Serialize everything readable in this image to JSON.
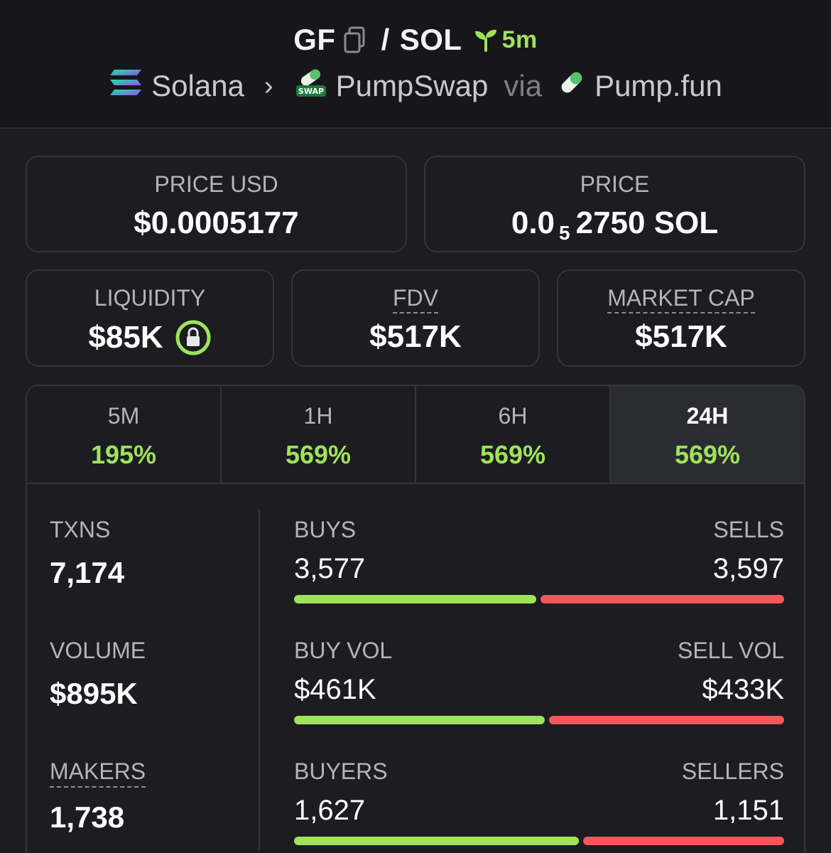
{
  "header": {
    "symbol": "GF",
    "slash": "/",
    "quote": "SOL",
    "age": "5m",
    "chain": "Solana",
    "dex": "PumpSwap",
    "via": "via",
    "launchpad": "Pump.fun"
  },
  "prices": {
    "price_usd_label": "PRICE USD",
    "price_usd": "$0.0005177",
    "price_label": "PRICE",
    "price_prefix": "0.0",
    "price_subscript": "5",
    "price_suffix": "2750 SOL"
  },
  "metrics": {
    "liquidity_label": "LIQUIDITY",
    "liquidity": "$85K",
    "fdv_label": "FDV",
    "fdv": "$517K",
    "mcap_label": "MARKET CAP",
    "mcap": "$517K"
  },
  "tabs": [
    {
      "label": "5M",
      "value": "195%"
    },
    {
      "label": "1H",
      "value": "569%"
    },
    {
      "label": "6H",
      "value": "569%"
    },
    {
      "label": "24H",
      "value": "569%"
    }
  ],
  "active_tab": "24H",
  "stats": {
    "txns_label": "TXNS",
    "txns": "7,174",
    "volume_label": "VOLUME",
    "volume": "$895K",
    "makers_label": "MAKERS",
    "makers": "1,738",
    "buys_label": "BUYS",
    "buys": "3,577",
    "sells_label": "SELLS",
    "sells": "3,597",
    "buy_vol_label": "BUY VOL",
    "buy_vol": "$461K",
    "sell_vol_label": "SELL VOL",
    "sell_vol": "$433K",
    "buyers_label": "BUYERS",
    "buyers": "1,627",
    "sellers_label": "SELLERS",
    "sellers": "1,151"
  },
  "bars": {
    "txns_buy_fraction": 0.499,
    "volume_buy_fraction": 0.516,
    "makers_buy_fraction": 0.586
  },
  "colors": {
    "background": "#1c1c21",
    "positive": "#9fe35a",
    "negative": "#f4565b",
    "border": "#34343c"
  }
}
